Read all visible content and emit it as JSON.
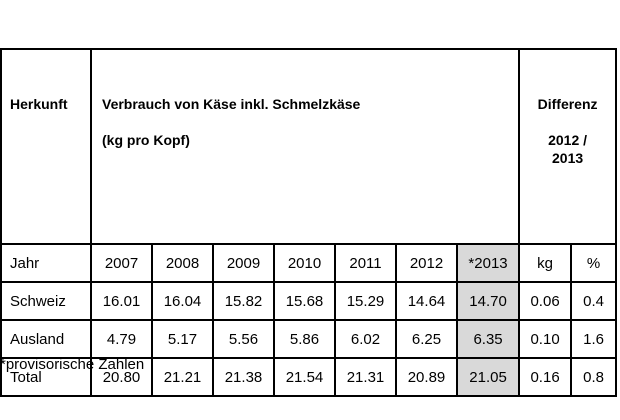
{
  "table": {
    "head": {
      "origin": "Herkunft",
      "main_title": "Verbrauch von Käse inkl. Schmelzkäse",
      "main_unit": "(kg pro Kopf)",
      "diff_title": "Differenz",
      "diff_period_line1": "2012 /",
      "diff_period_line2": "2013"
    },
    "rows": [
      {
        "label": "Jahr",
        "cells": [
          "2007",
          "2008",
          "2009",
          "2010",
          "2011",
          "2012",
          "*2013",
          "kg",
          "%"
        ]
      },
      {
        "label": "Schweiz",
        "cells": [
          "16.01",
          "16.04",
          "15.82",
          "15.68",
          "15.29",
          "14.64",
          "14.70",
          "0.06",
          "0.4"
        ]
      },
      {
        "label": "Ausland",
        "cells": [
          "4.79",
          "5.17",
          "5.56",
          "5.86",
          "6.02",
          "6.25",
          "6.35",
          "0.10",
          "1.6"
        ]
      },
      {
        "label": "Total",
        "cells": [
          "20.80",
          "21.21",
          "21.38",
          "21.54",
          "21.31",
          "20.89",
          "21.05",
          "0.16",
          "0.8"
        ]
      }
    ],
    "highlight_color": "#d9d9d9"
  },
  "footnote": "*provisorische Zahlen"
}
